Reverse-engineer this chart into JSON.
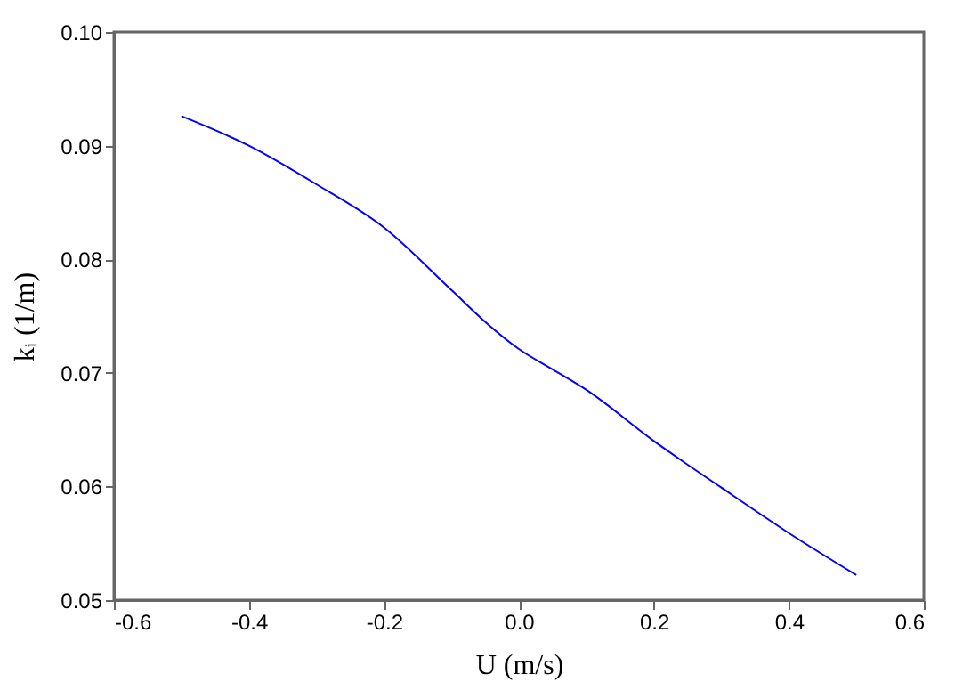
{
  "chart_data": {
    "type": "line",
    "xlabel": "U (m/s)",
    "ylabel": "kᵢ (1/m)",
    "x": [
      -0.5,
      -0.4,
      -0.3,
      -0.2,
      -0.1,
      -0.05,
      0.0,
      0.05,
      0.1,
      0.2,
      0.3,
      0.4,
      0.5
    ],
    "series": [
      {
        "color": "#0000ff",
        "values": [
          0.0926,
          0.09,
          0.0866,
          0.0828,
          0.0773,
          0.0745,
          0.0721,
          0.0703,
          0.0685,
          0.064,
          0.0599,
          0.0559,
          0.0522
        ]
      }
    ],
    "xlim": [
      -0.6,
      0.6
    ],
    "xticks": [
      {
        "value": -0.6,
        "label": "-0.6"
      },
      {
        "value": -0.4,
        "label": "-0.4"
      },
      {
        "value": -0.2,
        "label": "-0.2"
      },
      {
        "value": 0.0,
        "label": "0.0"
      },
      {
        "value": 0.2,
        "label": "0.2"
      },
      {
        "value": 0.4,
        "label": "0.4"
      },
      {
        "value": 0.6,
        "label": "0.6"
      }
    ],
    "ylim": [
      0.05,
      0.1
    ],
    "yticks": [
      {
        "value": 0.05,
        "label": "0.05"
      },
      {
        "value": 0.06,
        "label": "0.06"
      },
      {
        "value": 0.07,
        "label": "0.07"
      },
      {
        "value": 0.08,
        "label": "0.08"
      },
      {
        "value": 0.09,
        "label": "0.09"
      },
      {
        "value": 0.1,
        "label": "0.10"
      }
    ],
    "grid": false,
    "marker": "none",
    "line_style": "solid"
  }
}
